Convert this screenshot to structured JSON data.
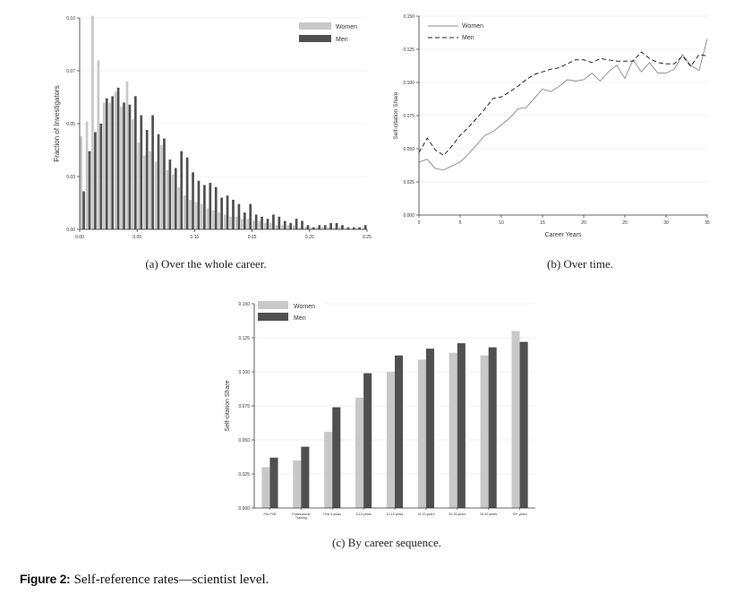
{
  "colors": {
    "women": "#c8c8c8",
    "men": "#505050",
    "axis": "#333333",
    "grid": "#e2e2e2"
  },
  "figure_caption": {
    "label": "Figure 2:",
    "text": "Self-reference rates—scientist level."
  },
  "chart_data": [
    {
      "id": "a",
      "type": "bar",
      "caption": "(a) Over the whole career.",
      "title": "",
      "xlabel": "",
      "ylabel": "Fraction of Investigators",
      "xlim": [
        0,
        0.25
      ],
      "ylim": [
        0,
        0.1
      ],
      "xticks": [
        "0.00",
        "0.05",
        "0.10",
        "0.15",
        "0.20",
        "0.25"
      ],
      "yticks": [
        "0.00",
        "0.03",
        "0.05",
        "0.07",
        "0.10"
      ],
      "grid": true,
      "legend": "top-right",
      "bin_width": 0.005,
      "bin_starts": [
        0.0,
        0.005,
        0.01,
        0.015,
        0.02,
        0.025,
        0.03,
        0.035,
        0.04,
        0.045,
        0.05,
        0.055,
        0.06,
        0.065,
        0.07,
        0.075,
        0.08,
        0.085,
        0.09,
        0.095,
        0.1,
        0.105,
        0.11,
        0.115,
        0.12,
        0.125,
        0.13,
        0.135,
        0.14,
        0.145,
        0.15,
        0.155,
        0.16,
        0.165,
        0.17,
        0.175,
        0.18,
        0.185,
        0.19,
        0.195,
        0.2,
        0.205,
        0.21,
        0.215,
        0.22,
        0.225,
        0.23,
        0.235,
        0.24,
        0.245
      ],
      "series": [
        {
          "name": "Women",
          "values": [
            0.044,
            0.051,
            0.101,
            0.08,
            0.06,
            0.06,
            0.065,
            0.058,
            0.07,
            0.052,
            0.041,
            0.035,
            0.037,
            0.032,
            0.04,
            0.028,
            0.026,
            0.02,
            0.016,
            0.014,
            0.013,
            0.012,
            0.01,
            0.009,
            0.008,
            0.007,
            0.006,
            0.006,
            0.005,
            0.005,
            0.004,
            0.004,
            0.003,
            0.003,
            0.002,
            0.002,
            0.002,
            0.002,
            0.001,
            0.001,
            0.001,
            0.001,
            0.001,
            0.001,
            0.001,
            0.001,
            0.0005,
            0.0005,
            0.0005,
            0.0005
          ]
        },
        {
          "name": "Men",
          "values": [
            0.018,
            0.037,
            0.046,
            0.05,
            0.062,
            0.063,
            0.067,
            0.06,
            0.059,
            0.063,
            0.054,
            0.047,
            0.054,
            0.045,
            0.043,
            0.033,
            0.029,
            0.037,
            0.034,
            0.027,
            0.023,
            0.021,
            0.022,
            0.02,
            0.015,
            0.016,
            0.014,
            0.012,
            0.008,
            0.012,
            0.007,
            0.006,
            0.005,
            0.007,
            0.006,
            0.004,
            0.003,
            0.005,
            0.004,
            0.002,
            0.001,
            0.002,
            0.002,
            0.003,
            0.003,
            0.002,
            0.001,
            0.001,
            0.001,
            0.002
          ]
        }
      ]
    },
    {
      "id": "b",
      "type": "line",
      "caption": "(b) Over time.",
      "title": "",
      "xlabel": "Career Years",
      "ylabel": "Self-citation Share",
      "xlim": [
        0,
        35
      ],
      "ylim": [
        0,
        0.15
      ],
      "xticks": [
        "0",
        "5",
        "10",
        "15",
        "20",
        "25",
        "30",
        "35"
      ],
      "yticks": [
        "0.000",
        "0.025",
        "0.050",
        "0.075",
        "0.100",
        "0.125",
        "0.150"
      ],
      "grid": true,
      "legend": "top-left",
      "x": [
        0,
        1,
        2,
        3,
        4,
        5,
        6,
        7,
        8,
        9,
        10,
        11,
        12,
        13,
        14,
        15,
        16,
        17,
        18,
        19,
        20,
        21,
        22,
        23,
        24,
        25,
        26,
        27,
        28,
        29,
        30,
        31,
        32,
        33,
        34,
        35
      ],
      "series": [
        {
          "name": "Women",
          "style": "solid",
          "values": [
            0.04,
            0.042,
            0.035,
            0.034,
            0.037,
            0.04,
            0.046,
            0.053,
            0.06,
            0.063,
            0.068,
            0.073,
            0.08,
            0.081,
            0.088,
            0.095,
            0.093,
            0.097,
            0.102,
            0.101,
            0.102,
            0.107,
            0.101,
            0.108,
            0.113,
            0.103,
            0.117,
            0.108,
            0.115,
            0.107,
            0.107,
            0.11,
            0.121,
            0.113,
            0.109,
            0.133
          ]
        },
        {
          "name": "Men",
          "style": "dashed",
          "values": [
            0.047,
            0.058,
            0.049,
            0.045,
            0.052,
            0.06,
            0.066,
            0.073,
            0.08,
            0.088,
            0.089,
            0.093,
            0.097,
            0.102,
            0.106,
            0.108,
            0.11,
            0.111,
            0.114,
            0.117,
            0.117,
            0.115,
            0.118,
            0.117,
            0.116,
            0.116,
            0.116,
            0.123,
            0.118,
            0.115,
            0.114,
            0.114,
            0.12,
            0.112,
            0.121,
            0.12
          ]
        }
      ]
    },
    {
      "id": "c",
      "type": "bar",
      "caption": "(c) By career sequence.",
      "title": "",
      "xlabel": "",
      "ylabel": "Self-citation Share",
      "ylim": [
        0,
        0.15
      ],
      "yticks": [
        "0.000",
        "0.025",
        "0.050",
        "0.075",
        "0.100",
        "0.125",
        "0.150"
      ],
      "grid": true,
      "legend": "top-left",
      "categories": [
        "Pre-PhD",
        "Postdoctoral Training",
        "First 5 years",
        "5-10 years",
        "10-15 years",
        "15-20 years",
        "20-25 years",
        "25-30 years",
        "30+ years"
      ],
      "series": [
        {
          "name": "Women",
          "values": [
            0.03,
            0.035,
            0.056,
            0.081,
            0.1,
            0.109,
            0.114,
            0.112,
            0.13
          ]
        },
        {
          "name": "Men",
          "values": [
            0.037,
            0.045,
            0.074,
            0.099,
            0.112,
            0.117,
            0.121,
            0.118,
            0.122
          ]
        }
      ]
    }
  ]
}
